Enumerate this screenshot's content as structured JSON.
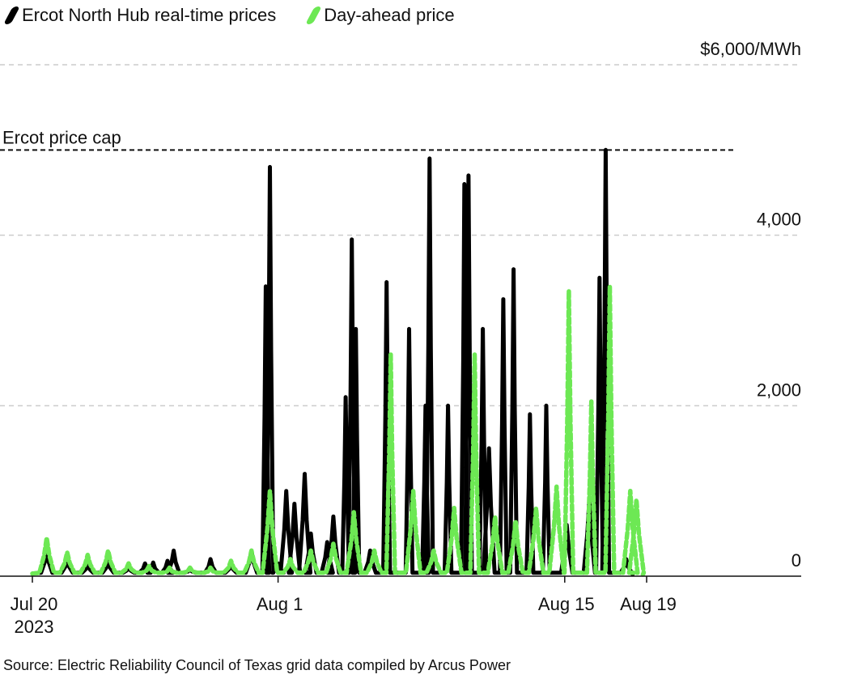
{
  "legend": {
    "realtime_label": "Ercot North Hub real-time prices",
    "dayahead_label": "Day-ahead price"
  },
  "colors": {
    "realtime": "#000000",
    "dayahead": "#6de854",
    "grid": "#cccccc"
  },
  "source": "Source: Electric Reliability Council of Texas grid data compiled by Arcus Power",
  "chart_data": {
    "type": "line",
    "title": "",
    "xlabel": "",
    "ylabel": "",
    "x_unit": "days since Jul 20 2023",
    "xlim": [
      0,
      36
    ],
    "ylim": [
      0,
      6000
    ],
    "yticks": [
      {
        "value": 0,
        "label": "0"
      },
      {
        "value": 2000,
        "label": "2,000"
      },
      {
        "value": 4000,
        "label": "4,000"
      },
      {
        "value": 6000,
        "label": "$6,000/MWh"
      }
    ],
    "xticks": [
      {
        "value": 0,
        "label": "Jul 20",
        "sublabel": "2023"
      },
      {
        "value": 12,
        "label": "Aug 1",
        "sublabel": ""
      },
      {
        "value": 26,
        "label": "Aug 15",
        "sublabel": ""
      },
      {
        "value": 30,
        "label": "Aug 19",
        "sublabel": ""
      }
    ],
    "annotation": {
      "label": "Ercot price cap",
      "value": 5000
    },
    "grid": true,
    "legend_position": "top-left",
    "series": [
      {
        "name": "Ercot North Hub real-time prices",
        "style": "solid",
        "peaks": [
          [
            0.7,
            300
          ],
          [
            1.7,
            200
          ],
          [
            2.7,
            150
          ],
          [
            3.7,
            180
          ],
          [
            4.7,
            120
          ],
          [
            5.5,
            150
          ],
          [
            5.9,
            160
          ],
          [
            6.6,
            180
          ],
          [
            6.9,
            300
          ],
          [
            7.7,
            100
          ],
          [
            8.7,
            200
          ],
          [
            9.7,
            150
          ],
          [
            10.7,
            300
          ],
          [
            11.4,
            3400
          ],
          [
            11.6,
            4800
          ],
          [
            12.0,
            150
          ],
          [
            12.4,
            1000
          ],
          [
            12.8,
            850
          ],
          [
            13.3,
            1200
          ],
          [
            13.6,
            500
          ],
          [
            14.4,
            400
          ],
          [
            14.7,
            700
          ],
          [
            15.3,
            2100
          ],
          [
            15.6,
            3950
          ],
          [
            15.8,
            2900
          ],
          [
            16.5,
            300
          ],
          [
            17.3,
            3450
          ],
          [
            18.4,
            2900
          ],
          [
            19.2,
            2000
          ],
          [
            19.4,
            4900
          ],
          [
            20.3,
            2000
          ],
          [
            21.1,
            4600
          ],
          [
            21.3,
            4700
          ],
          [
            22.0,
            2900
          ],
          [
            22.3,
            1500
          ],
          [
            23.0,
            3250
          ],
          [
            23.5,
            3600
          ],
          [
            24.3,
            1900
          ],
          [
            25.1,
            2000
          ],
          [
            26.1,
            600
          ],
          [
            27.2,
            900
          ],
          [
            27.7,
            3500
          ],
          [
            28.0,
            5000
          ],
          [
            29.0,
            200
          ]
        ]
      },
      {
        "name": "Day-ahead price",
        "style": "dashed",
        "peaks": [
          [
            0.7,
            450
          ],
          [
            1.7,
            280
          ],
          [
            2.7,
            250
          ],
          [
            3.7,
            300
          ],
          [
            4.7,
            150
          ],
          [
            5.7,
            120
          ],
          [
            6.7,
            100
          ],
          [
            7.7,
            100
          ],
          [
            8.7,
            100
          ],
          [
            9.7,
            180
          ],
          [
            10.7,
            300
          ],
          [
            11.6,
            1000
          ],
          [
            12.6,
            200
          ],
          [
            13.6,
            300
          ],
          [
            14.7,
            380
          ],
          [
            15.7,
            750
          ],
          [
            16.7,
            300
          ],
          [
            17.5,
            2600
          ],
          [
            18.6,
            1000
          ],
          [
            19.6,
            300
          ],
          [
            20.6,
            800
          ],
          [
            21.6,
            2600
          ],
          [
            22.6,
            700
          ],
          [
            23.6,
            650
          ],
          [
            24.6,
            800
          ],
          [
            25.6,
            1050
          ],
          [
            26.2,
            3350
          ],
          [
            27.3,
            2050
          ],
          [
            28.2,
            3400
          ],
          [
            29.2,
            1000
          ],
          [
            29.5,
            900
          ]
        ]
      }
    ]
  }
}
